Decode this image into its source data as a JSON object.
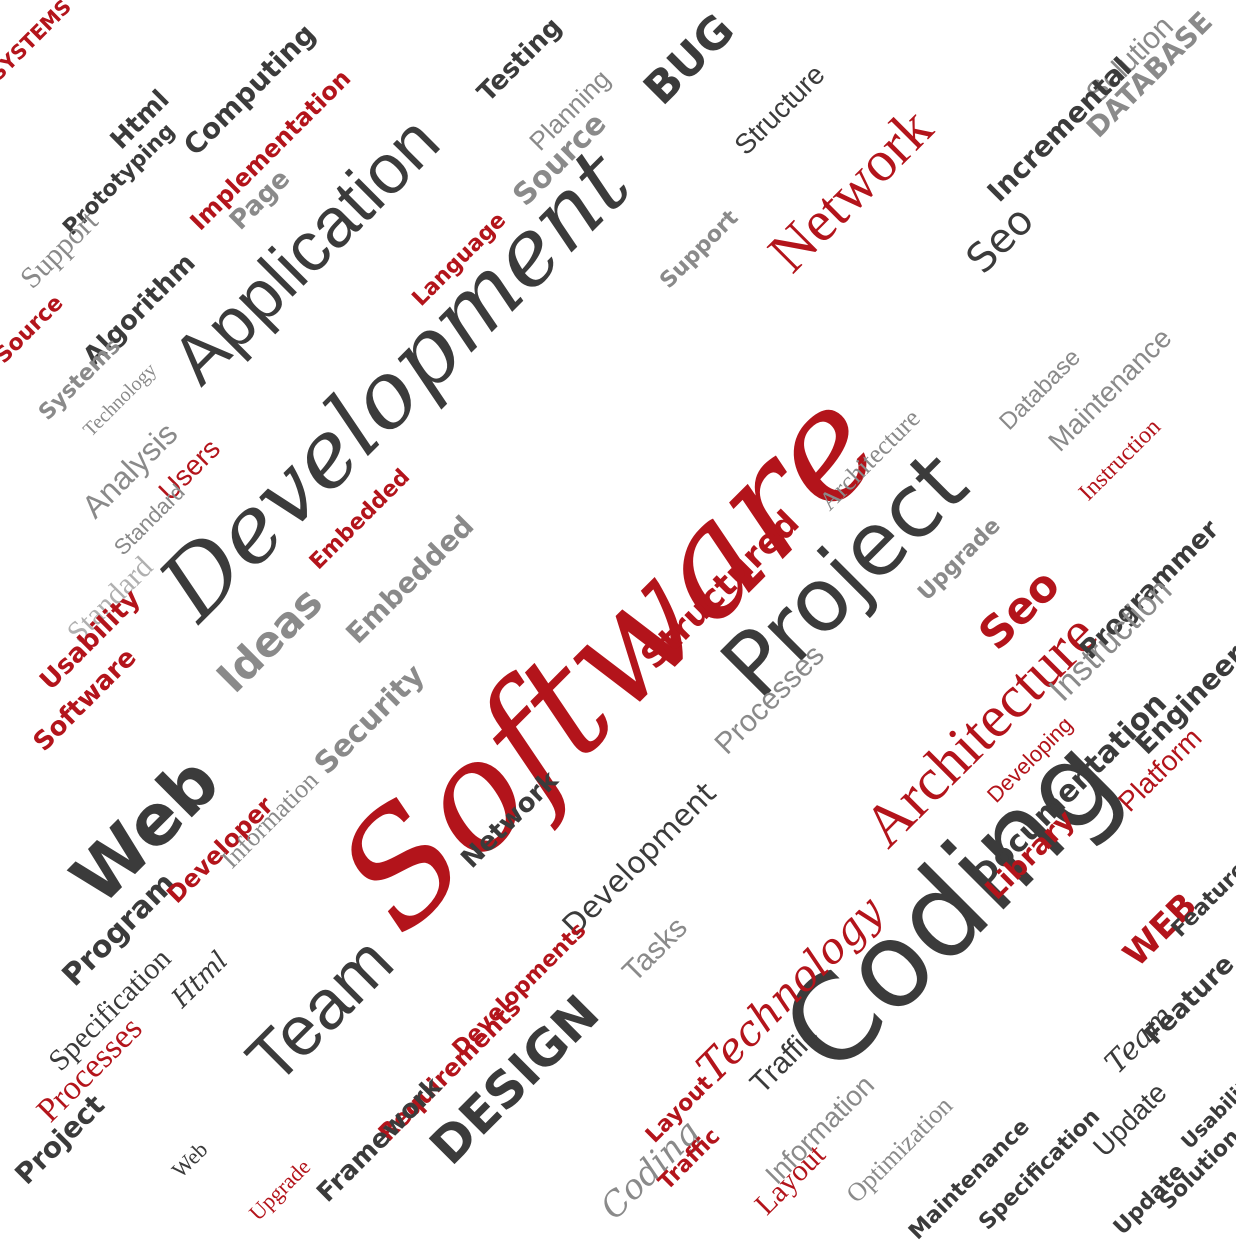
{
  "palette": {
    "red": "#b3141b",
    "dark": "#3b3b3b",
    "gray": "#8a8a8a",
    "light": "#b0b0b0",
    "background": "#ffffff"
  },
  "words": [
    {
      "text": "Software",
      "color": "red",
      "style": "script"
    },
    {
      "text": "Development",
      "color": "dark",
      "style": "script"
    },
    {
      "text": "Coding",
      "color": "dark",
      "style": "thin"
    },
    {
      "text": "Project",
      "color": "dark",
      "style": "thin"
    },
    {
      "text": "Application",
      "color": "dark",
      "style": "sans"
    },
    {
      "text": "Architecture",
      "color": "red",
      "style": "serif"
    },
    {
      "text": "Network",
      "color": "red",
      "style": "serif"
    },
    {
      "text": "Web",
      "color": "dark",
      "style": "sansb"
    },
    {
      "text": "Team",
      "color": "dark",
      "style": "sans"
    },
    {
      "text": "Development",
      "color": "dark",
      "style": "thin"
    },
    {
      "text": "Technology",
      "color": "red",
      "style": "script"
    },
    {
      "text": "DESIGN",
      "color": "dark",
      "style": "sansb"
    },
    {
      "text": "Ideas",
      "color": "gray",
      "style": "sansb"
    },
    {
      "text": "BUG",
      "color": "dark",
      "style": "sansb"
    },
    {
      "text": "Seo",
      "color": "dark",
      "style": "thin"
    },
    {
      "text": "Structured",
      "color": "red",
      "style": "sansb"
    },
    {
      "text": "Documentation",
      "color": "dark",
      "style": "sansb"
    },
    {
      "text": "DATABASE",
      "color": "gray",
      "style": "sansb"
    },
    {
      "text": "Library",
      "color": "red",
      "style": "sansb"
    },
    {
      "text": "Security",
      "color": "gray",
      "style": "sansb"
    },
    {
      "text": "Embedded",
      "color": "gray",
      "style": "sansb"
    },
    {
      "text": "Analysis",
      "color": "gray",
      "style": "sans"
    },
    {
      "text": "Standard",
      "color": "light",
      "style": "serif"
    },
    {
      "text": "Processes",
      "color": "red",
      "style": "serif"
    },
    {
      "text": "Requirements",
      "color": "red",
      "style": "sansb"
    },
    {
      "text": "Traffic",
      "color": "dark",
      "style": "sans"
    },
    {
      "text": "Information",
      "color": "gray",
      "style": "sans"
    },
    {
      "text": "Layout",
      "color": "red",
      "style": "serif"
    },
    {
      "text": "Optimization",
      "color": "gray",
      "style": "serif"
    },
    {
      "text": "Programmer",
      "color": "dark",
      "style": "sansb"
    },
    {
      "text": "Instruction",
      "color": "gray",
      "style": "sans"
    },
    {
      "text": "Maintenance",
      "color": "gray",
      "style": "sans"
    },
    {
      "text": "Platform",
      "color": "red",
      "style": "sans"
    },
    {
      "text": "Implementation",
      "color": "red",
      "style": "sansb"
    },
    {
      "text": "Computing",
      "color": "dark",
      "style": "sansb"
    },
    {
      "text": "Prototyping",
      "color": "dark",
      "style": "sansb"
    },
    {
      "text": "Html",
      "color": "dark",
      "style": "sansb"
    },
    {
      "text": "Page",
      "color": "gray",
      "style": "sansb"
    },
    {
      "text": "Source",
      "color": "gray",
      "style": "sansb"
    },
    {
      "text": "Planning",
      "color": "gray",
      "style": "sans"
    },
    {
      "text": "Testing",
      "color": "dark",
      "style": "sansb"
    },
    {
      "text": "Framework",
      "color": "dark",
      "style": "sansb"
    },
    {
      "text": "Solution",
      "color": "gray",
      "style": "sans"
    },
    {
      "text": "Incremental",
      "color": "dark",
      "style": "sansb"
    },
    {
      "text": "Users",
      "color": "red",
      "style": "sans"
    },
    {
      "text": "Support",
      "color": "gray",
      "style": "serif"
    },
    {
      "text": "Algorithm",
      "color": "dark",
      "style": "sansb"
    },
    {
      "text": "SYSTEMS",
      "color": "red",
      "style": "sansb"
    },
    {
      "text": "Usability",
      "color": "red",
      "style": "sansb"
    },
    {
      "text": "Program",
      "color": "dark",
      "style": "sansb"
    },
    {
      "text": "Specification",
      "color": "dark",
      "style": "serif"
    },
    {
      "text": "Update",
      "color": "dark",
      "style": "sans"
    },
    {
      "text": "Feature",
      "color": "dark",
      "style": "sansb"
    },
    {
      "text": "Tasks",
      "color": "gray",
      "style": "sans"
    },
    {
      "text": "Language",
      "color": "red",
      "style": "sansb"
    },
    {
      "text": "Developer",
      "color": "red",
      "style": "sansb"
    },
    {
      "text": "Engineer",
      "color": "dark",
      "style": "sansb"
    },
    {
      "text": "Upgrade",
      "color": "red",
      "style": "serif"
    },
    {
      "text": "Structure",
      "color": "dark",
      "style": "sans"
    },
    {
      "text": "Developing",
      "color": "red",
      "style": "sans"
    },
    {
      "text": "Database",
      "color": "gray",
      "style": "sans"
    },
    {
      "text": "Seo",
      "color": "red",
      "style": "sansb"
    },
    {
      "text": "WEB",
      "color": "red",
      "style": "sansb"
    },
    {
      "text": "Team",
      "color": "dark",
      "style": "script"
    },
    {
      "text": "Coding",
      "color": "gray",
      "style": "script"
    },
    {
      "text": "Html",
      "color": "dark",
      "style": "script"
    },
    {
      "text": "Network",
      "color": "dark",
      "style": "sansb"
    },
    {
      "text": "Embedded",
      "color": "red",
      "style": "sansb"
    },
    {
      "text": "Information",
      "color": "gray",
      "style": "serif"
    },
    {
      "text": "Software",
      "color": "red",
      "style": "sansb"
    },
    {
      "text": "Source",
      "color": "red",
      "style": "sansb"
    },
    {
      "text": "Standard",
      "color": "gray",
      "style": "sans"
    },
    {
      "text": "Technology",
      "color": "gray",
      "style": "serif"
    },
    {
      "text": "Support",
      "color": "gray",
      "style": "sansb"
    },
    {
      "text": "Systems",
      "color": "gray",
      "style": "sansb"
    },
    {
      "text": "Architecture",
      "color": "gray",
      "style": "serif"
    },
    {
      "text": "Upgrade",
      "color": "gray",
      "style": "sansb"
    },
    {
      "text": "Project",
      "color": "dark",
      "style": "sansb"
    },
    {
      "text": "Layout",
      "color": "red",
      "style": "sansb"
    },
    {
      "text": "Traffic",
      "color": "red",
      "style": "sansb"
    },
    {
      "text": "Web",
      "color": "dark",
      "style": "serif"
    },
    {
      "text": "Maintenance",
      "color": "dark",
      "style": "sansb"
    },
    {
      "text": "Specification",
      "color": "dark",
      "style": "sansb"
    },
    {
      "text": "Developments",
      "color": "red",
      "style": "sansb"
    },
    {
      "text": "Feature",
      "color": "dark",
      "style": "sansb"
    },
    {
      "text": "Usability",
      "color": "dark",
      "style": "sansb"
    },
    {
      "text": "Solution",
      "color": "dark",
      "style": "sansb"
    },
    {
      "text": "Update",
      "color": "dark",
      "style": "sansb"
    },
    {
      "text": "Processes",
      "color": "gray",
      "style": "sans"
    },
    {
      "text": "Instruction",
      "color": "red",
      "style": "serif"
    }
  ]
}
